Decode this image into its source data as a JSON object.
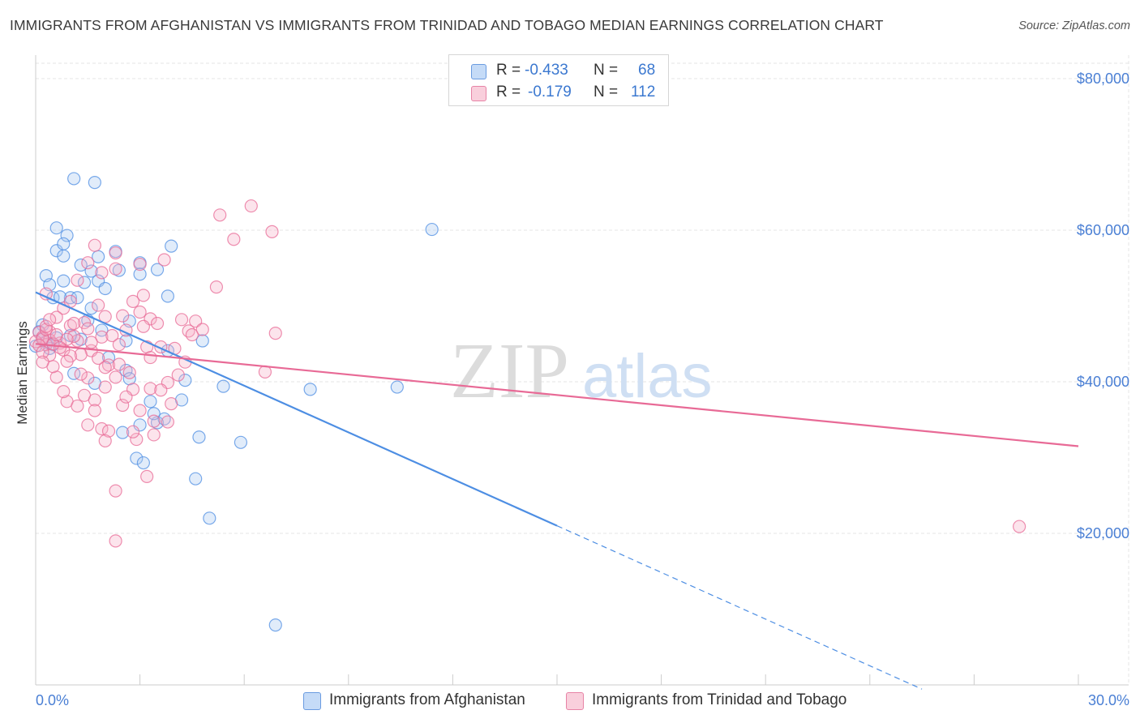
{
  "title": "IMMIGRANTS FROM AFGHANISTAN VS IMMIGRANTS FROM TRINIDAD AND TOBAGO MEDIAN EARNINGS CORRELATION CHART",
  "source": "Source: ZipAtlas.com",
  "watermark": {
    "zip": "ZIP",
    "atlas": "atlas"
  },
  "legend": {
    "r_label": "R =",
    "n_label": "N =",
    "rows": [
      {
        "r": "-0.433",
        "n": "68",
        "color": "#a9c8f2"
      },
      {
        "r": "-0.179",
        "n": "112",
        "color": "#f5b3c8"
      }
    ]
  },
  "bottom_legend": [
    {
      "label": "Immigrants from Afghanistan",
      "color": "#a9c8f2"
    },
    {
      "label": "Immigrants from Trinidad and Tobago",
      "color": "#f5b3c8"
    }
  ],
  "chart_data": {
    "type": "scatter",
    "xlabel": "",
    "ylabel": "Median Earnings",
    "xlim": [
      0,
      30
    ],
    "ylim": [
      0,
      80000
    ],
    "x_tick_labels": [
      "0.0%",
      "30.0%"
    ],
    "y_ticks": [
      20000,
      40000,
      60000,
      80000
    ],
    "y_tick_labels": [
      "$20,000",
      "$40,000",
      "$60,000",
      "$80,000"
    ],
    "series": [
      {
        "name": "Immigrants from Afghanistan",
        "color": "#4d8ee3",
        "fill": "#a9c8f2",
        "trend": {
          "x0": 0,
          "y0": 51800,
          "x1": 15.0,
          "y1": 21000,
          "dash_to_x": 25.5
        },
        "points": [
          [
            1.1,
            66800
          ],
          [
            1.7,
            66300
          ],
          [
            0.6,
            60300
          ],
          [
            0.9,
            59300
          ],
          [
            0.6,
            57300
          ],
          [
            0.8,
            56600
          ],
          [
            0.8,
            58200
          ],
          [
            1.8,
            56500
          ],
          [
            2.3,
            57200
          ],
          [
            3.9,
            57900
          ],
          [
            0.3,
            54000
          ],
          [
            1.3,
            55400
          ],
          [
            1.6,
            54600
          ],
          [
            2.4,
            54700
          ],
          [
            3.0,
            55700
          ],
          [
            3.5,
            54800
          ],
          [
            3.0,
            54200
          ],
          [
            0.4,
            52800
          ],
          [
            0.8,
            53300
          ],
          [
            1.4,
            53100
          ],
          [
            1.8,
            53300
          ],
          [
            2.0,
            52300
          ],
          [
            0.5,
            51100
          ],
          [
            1.0,
            51100
          ],
          [
            1.2,
            51100
          ],
          [
            3.8,
            51300
          ],
          [
            0.7,
            51200
          ],
          [
            1.6,
            49700
          ],
          [
            1.5,
            48100
          ],
          [
            2.7,
            48000
          ],
          [
            0.2,
            47500
          ],
          [
            1.3,
            45600
          ],
          [
            1.9,
            46800
          ],
          [
            2.6,
            45400
          ],
          [
            4.8,
            45400
          ],
          [
            0.0,
            44700
          ],
          [
            3.8,
            44100
          ],
          [
            1.1,
            41100
          ],
          [
            2.1,
            43200
          ],
          [
            2.6,
            41500
          ],
          [
            4.3,
            40200
          ],
          [
            1.7,
            39800
          ],
          [
            5.4,
            39400
          ],
          [
            7.9,
            39000
          ],
          [
            10.4,
            39300
          ],
          [
            2.7,
            40400
          ],
          [
            3.3,
            37400
          ],
          [
            3.5,
            34600
          ],
          [
            4.2,
            37600
          ],
          [
            3.4,
            35800
          ],
          [
            3.0,
            34300
          ],
          [
            3.7,
            35100
          ],
          [
            2.5,
            33300
          ],
          [
            4.7,
            32700
          ],
          [
            5.9,
            32000
          ],
          [
            2.9,
            29900
          ],
          [
            3.1,
            29300
          ],
          [
            4.6,
            27200
          ],
          [
            5.0,
            22000
          ],
          [
            11.4,
            60100
          ],
          [
            6.9,
            7900
          ],
          [
            0.1,
            46600
          ],
          [
            0.6,
            45800
          ],
          [
            0.3,
            45200
          ],
          [
            0.5,
            44900
          ],
          [
            1.0,
            46100
          ],
          [
            0.2,
            45600
          ],
          [
            0.4,
            44400
          ]
        ]
      },
      {
        "name": "Immigrants from Trinidad and Tobago",
        "color": "#e86a96",
        "fill": "#f5b3c8",
        "trend": {
          "x0": 0,
          "y0": 45000,
          "x1": 30.0,
          "y1": 31500
        },
        "points": [
          [
            6.2,
            63200
          ],
          [
            5.3,
            62000
          ],
          [
            6.8,
            59800
          ],
          [
            5.7,
            58800
          ],
          [
            2.3,
            57000
          ],
          [
            1.7,
            58000
          ],
          [
            3.7,
            56100
          ],
          [
            1.5,
            55700
          ],
          [
            1.9,
            54400
          ],
          [
            3.0,
            55500
          ],
          [
            2.3,
            54900
          ],
          [
            0.3,
            51600
          ],
          [
            1.2,
            53400
          ],
          [
            5.2,
            52500
          ],
          [
            3.1,
            51400
          ],
          [
            2.8,
            50600
          ],
          [
            0.8,
            49700
          ],
          [
            1.8,
            50100
          ],
          [
            3.3,
            48300
          ],
          [
            2.5,
            48700
          ],
          [
            4.2,
            48200
          ],
          [
            4.6,
            48000
          ],
          [
            0.6,
            48500
          ],
          [
            1.4,
            47800
          ],
          [
            1.0,
            47400
          ],
          [
            3.1,
            47300
          ],
          [
            4.4,
            46700
          ],
          [
            6.9,
            46400
          ],
          [
            0.4,
            46600
          ],
          [
            0.1,
            46500
          ],
          [
            0.2,
            45900
          ],
          [
            0.4,
            45500
          ],
          [
            0.0,
            45300
          ],
          [
            0.3,
            44900
          ],
          [
            0.7,
            45100
          ],
          [
            1.2,
            45400
          ],
          [
            0.8,
            44200
          ],
          [
            1.6,
            44100
          ],
          [
            3.2,
            44600
          ],
          [
            4.0,
            44400
          ],
          [
            0.4,
            43500
          ],
          [
            1.3,
            43600
          ],
          [
            2.1,
            42200
          ],
          [
            3.3,
            43200
          ],
          [
            4.3,
            42600
          ],
          [
            6.6,
            41300
          ],
          [
            0.6,
            40600
          ],
          [
            1.5,
            40500
          ],
          [
            2.7,
            41200
          ],
          [
            2.0,
            41900
          ],
          [
            2.3,
            40600
          ],
          [
            3.3,
            39100
          ],
          [
            3.8,
            39900
          ],
          [
            2.0,
            39300
          ],
          [
            1.4,
            38200
          ],
          [
            1.7,
            37600
          ],
          [
            0.9,
            37400
          ],
          [
            1.2,
            36800
          ],
          [
            2.5,
            36900
          ],
          [
            3.6,
            38900
          ],
          [
            3.0,
            36200
          ],
          [
            3.4,
            34800
          ],
          [
            3.8,
            34700
          ],
          [
            1.9,
            33800
          ],
          [
            2.1,
            33500
          ],
          [
            2.9,
            32400
          ],
          [
            2.0,
            32200
          ],
          [
            3.4,
            33000
          ],
          [
            3.2,
            27500
          ],
          [
            2.3,
            25600
          ],
          [
            2.3,
            19000
          ],
          [
            28.3,
            20900
          ],
          [
            0.2,
            45700
          ],
          [
            0.5,
            45000
          ],
          [
            0.1,
            44800
          ],
          [
            0.6,
            46200
          ],
          [
            0.3,
            46900
          ],
          [
            1.1,
            46000
          ],
          [
            0.9,
            45600
          ],
          [
            1.5,
            47000
          ],
          [
            2.6,
            46800
          ],
          [
            1.9,
            45900
          ],
          [
            0.2,
            43900
          ],
          [
            0.5,
            42000
          ],
          [
            1.0,
            43400
          ],
          [
            1.8,
            43100
          ],
          [
            2.4,
            42300
          ],
          [
            3.6,
            44600
          ],
          [
            4.1,
            40900
          ],
          [
            2.8,
            39000
          ],
          [
            1.1,
            47700
          ],
          [
            0.7,
            44500
          ],
          [
            0.3,
            47300
          ],
          [
            1.6,
            45200
          ],
          [
            2.2,
            46100
          ],
          [
            3.5,
            47700
          ],
          [
            4.5,
            46200
          ],
          [
            0.9,
            42700
          ],
          [
            1.3,
            41000
          ],
          [
            2.6,
            38000
          ],
          [
            3.9,
            37100
          ],
          [
            1.7,
            36200
          ],
          [
            2.4,
            44900
          ],
          [
            0.4,
            48200
          ],
          [
            1.0,
            50600
          ],
          [
            2.0,
            48600
          ],
          [
            3.0,
            49200
          ],
          [
            4.8,
            46900
          ],
          [
            0.8,
            38700
          ],
          [
            1.5,
            34300
          ],
          [
            2.8,
            33400
          ],
          [
            0.2,
            42600
          ]
        ]
      }
    ]
  }
}
